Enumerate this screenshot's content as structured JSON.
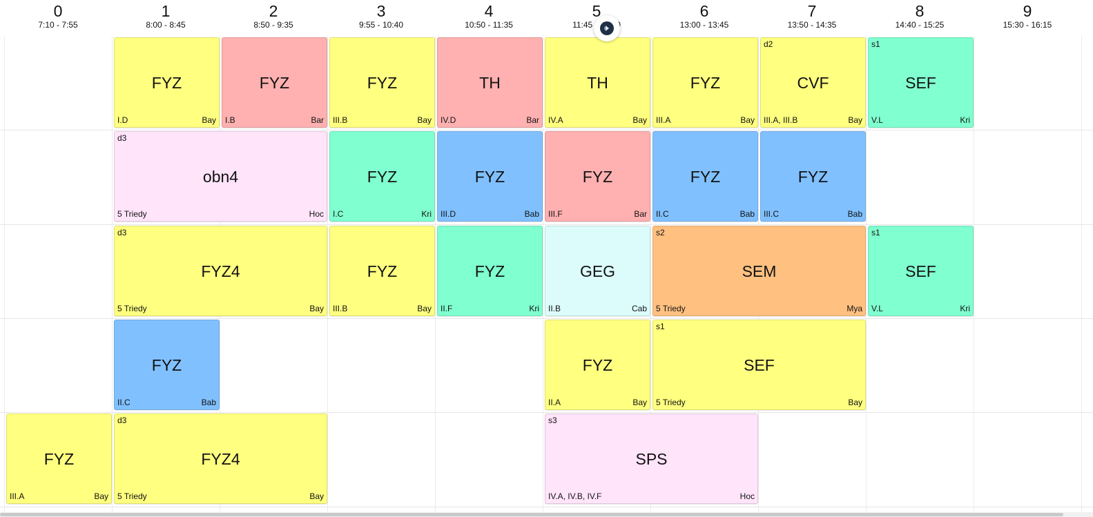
{
  "periods": [
    {
      "num": "0",
      "time": "7:10 - 7:55"
    },
    {
      "num": "1",
      "time": "8:00 - 8:45"
    },
    {
      "num": "2",
      "time": "8:50 - 9:35"
    },
    {
      "num": "3",
      "time": "9:55 - 10:40"
    },
    {
      "num": "4",
      "time": "10:50 - 11:35"
    },
    {
      "num": "5",
      "time": "11:45 - 12:30"
    },
    {
      "num": "6",
      "time": "13:00 - 13:45"
    },
    {
      "num": "7",
      "time": "13:50 - 14:35"
    },
    {
      "num": "8",
      "time": "14:40 - 15:25"
    },
    {
      "num": "9",
      "time": "15:30 - 16:15"
    }
  ],
  "colors": {
    "yellow": "#ffff80",
    "red": "#ffb0b0",
    "green": "#80ffd0",
    "blue": "#80c0ff",
    "pink": "#ffe4fa",
    "cyan": "#dcfcfc",
    "orange": "#ffc080"
  },
  "floating_button_icon": "brand-logo-icon",
  "lessons": [
    {
      "day": 0,
      "start_period": 1,
      "periods": 1,
      "subject": "FYZ",
      "class": "I.D",
      "teacher": "Bay",
      "group": "",
      "color": "yellow"
    },
    {
      "day": 0,
      "start_period": 2,
      "periods": 1,
      "subject": "FYZ",
      "class": "I.B",
      "teacher": "Bar",
      "group": "",
      "color": "red"
    },
    {
      "day": 0,
      "start_period": 3,
      "periods": 1,
      "subject": "FYZ",
      "class": "III.B",
      "teacher": "Bay",
      "group": "",
      "color": "yellow"
    },
    {
      "day": 0,
      "start_period": 4,
      "periods": 1,
      "subject": "TH",
      "class": "IV.D",
      "teacher": "Bar",
      "group": "",
      "color": "red"
    },
    {
      "day": 0,
      "start_period": 5,
      "periods": 1,
      "subject": "TH",
      "class": "IV.A",
      "teacher": "Bay",
      "group": "",
      "color": "yellow"
    },
    {
      "day": 0,
      "start_period": 6,
      "periods": 1,
      "subject": "FYZ",
      "class": "III.A",
      "teacher": "Bay",
      "group": "",
      "color": "yellow"
    },
    {
      "day": 0,
      "start_period": 7,
      "periods": 1,
      "subject": "CVF",
      "class": "III.A, III.B",
      "teacher": "Bay",
      "group": "d2",
      "color": "yellow"
    },
    {
      "day": 0,
      "start_period": 8,
      "periods": 1,
      "subject": "SEF",
      "class": "V.L",
      "teacher": "Kri",
      "group": "s1",
      "color": "green"
    },
    {
      "day": 1,
      "start_period": 1,
      "periods": 2,
      "subject": "obn4",
      "class": "5 Triedy",
      "teacher": "Hoc",
      "group": "d3",
      "color": "pink"
    },
    {
      "day": 1,
      "start_period": 3,
      "periods": 1,
      "subject": "FYZ",
      "class": "I.C",
      "teacher": "Kri",
      "group": "",
      "color": "green"
    },
    {
      "day": 1,
      "start_period": 4,
      "periods": 1,
      "subject": "FYZ",
      "class": "III.D",
      "teacher": "Bab",
      "group": "",
      "color": "blue"
    },
    {
      "day": 1,
      "start_period": 5,
      "periods": 1,
      "subject": "FYZ",
      "class": "III.F",
      "teacher": "Bar",
      "group": "",
      "color": "red"
    },
    {
      "day": 1,
      "start_period": 6,
      "periods": 1,
      "subject": "FYZ",
      "class": "II.C",
      "teacher": "Bab",
      "group": "",
      "color": "blue"
    },
    {
      "day": 1,
      "start_period": 7,
      "periods": 1,
      "subject": "FYZ",
      "class": "III.C",
      "teacher": "Bab",
      "group": "",
      "color": "blue"
    },
    {
      "day": 2,
      "start_period": 1,
      "periods": 2,
      "subject": "FYZ4",
      "class": "5 Triedy",
      "teacher": "Bay",
      "group": "d3",
      "color": "yellow"
    },
    {
      "day": 2,
      "start_period": 3,
      "periods": 1,
      "subject": "FYZ",
      "class": "III.B",
      "teacher": "Bay",
      "group": "",
      "color": "yellow"
    },
    {
      "day": 2,
      "start_period": 4,
      "periods": 1,
      "subject": "FYZ",
      "class": "II.F",
      "teacher": "Kri",
      "group": "",
      "color": "green"
    },
    {
      "day": 2,
      "start_period": 5,
      "periods": 1,
      "subject": "GEG",
      "class": "II.B",
      "teacher": "Cab",
      "group": "",
      "color": "cyan"
    },
    {
      "day": 2,
      "start_period": 6,
      "periods": 2,
      "subject": "SEM",
      "class": "5 Triedy",
      "teacher": "Mya",
      "group": "s2",
      "color": "orange"
    },
    {
      "day": 2,
      "start_period": 8,
      "periods": 1,
      "subject": "SEF",
      "class": "V.L",
      "teacher": "Kri",
      "group": "s1",
      "color": "green"
    },
    {
      "day": 3,
      "start_period": 1,
      "periods": 1,
      "subject": "FYZ",
      "class": "II.C",
      "teacher": "Bab",
      "group": "",
      "color": "blue"
    },
    {
      "day": 3,
      "start_period": 5,
      "periods": 1,
      "subject": "FYZ",
      "class": "II.A",
      "teacher": "Bay",
      "group": "",
      "color": "yellow"
    },
    {
      "day": 3,
      "start_period": 6,
      "periods": 2,
      "subject": "SEF",
      "class": "5 Triedy",
      "teacher": "Bay",
      "group": "s1",
      "color": "yellow"
    },
    {
      "day": 4,
      "start_period": 0,
      "periods": 1,
      "subject": "FYZ",
      "class": "III.A",
      "teacher": "Bay",
      "group": "",
      "color": "yellow"
    },
    {
      "day": 4,
      "start_period": 1,
      "periods": 2,
      "subject": "FYZ4",
      "class": "5 Triedy",
      "teacher": "Bay",
      "group": "d3",
      "color": "yellow"
    },
    {
      "day": 4,
      "start_period": 5,
      "periods": 2,
      "subject": "SPS",
      "class": "IV.A, IV.B, IV.F",
      "teacher": "Hoc",
      "group": "s3",
      "color": "pink"
    }
  ]
}
